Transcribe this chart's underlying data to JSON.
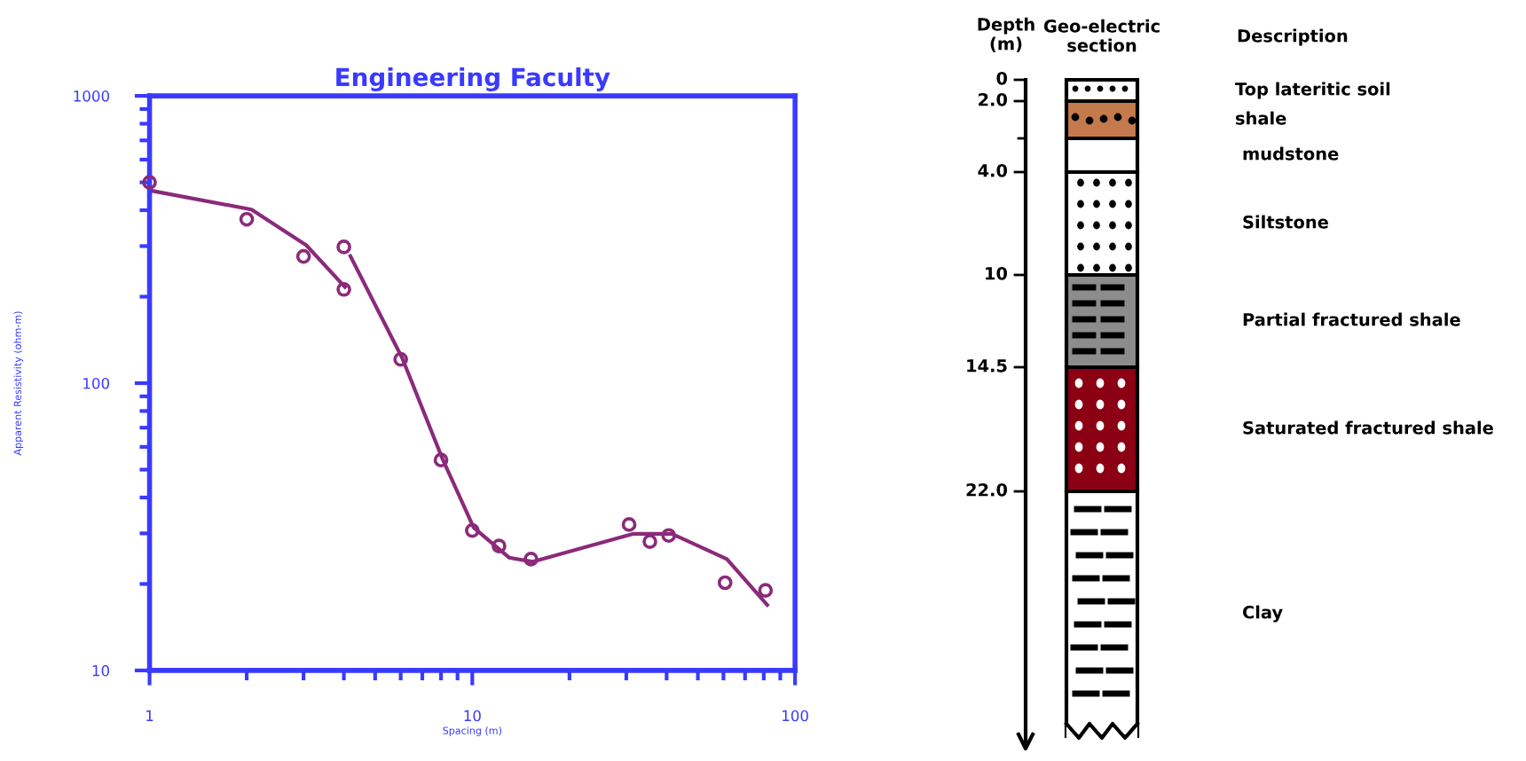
{
  "chart_data": [
    {
      "type": "scatter",
      "title": "Engineering Faculty",
      "xlabel": "Spacing (m)",
      "ylabel": "Apparent Resistivity (ohm-m)",
      "log": "xy",
      "xlim": [
        1,
        100
      ],
      "ylim": [
        10,
        1000
      ],
      "xticks": [
        1,
        10,
        100
      ],
      "yticks": [
        10,
        100,
        1000
      ],
      "grid": false,
      "series": [
        {
          "type": "scatter",
          "marker": "circle",
          "color": "#8b2a7a",
          "x": [
            1.0,
            2.0,
            3.0,
            4.0,
            4.0,
            6.0,
            8.0,
            10.0,
            12.1,
            15.2,
            30.6,
            35.5,
            40.6,
            60.7,
            81
          ],
          "values": [
            500,
            372,
            276,
            212,
            298,
            121,
            54,
            30.7,
            27.1,
            24.4,
            32.2,
            28.1,
            29.5,
            20.2,
            19.0
          ]
        },
        {
          "type": "line",
          "color": "#8b2a7a",
          "x": [
            1.0,
            2.07,
            3.06,
            4.03
          ],
          "values": [
            469,
            402,
            302,
            216
          ]
        },
        {
          "type": "line",
          "color": "#8b2a7a",
          "x": [
            4.19,
            6.07,
            8.09,
            10.1,
            13.0,
            15.4,
            31.6,
            41.5,
            61.5,
            82
          ],
          "values": [
            277,
            122,
            54.4,
            31.4,
            24.7,
            23.9,
            29.9,
            29.9,
            24.4,
            16.9
          ]
        }
      ]
    },
    {
      "type": "other",
      "ylabel": "Depth (m)",
      "annotations": [
        "Geo-electric section",
        "Description",
        "0",
        "2.0",
        "4.0",
        "10",
        "14.5",
        "22.0"
      ],
      "categories": [
        "Top lateritic soil",
        "shale",
        "mudstone",
        "Siltstone",
        "Partial fractured shale",
        "Saturated fractured shale",
        "Clay"
      ],
      "colors": [
        "#ffffff",
        "#c47a4c",
        "#ffffff",
        "#ffffff",
        "#8c8c8c",
        "#8b0012",
        "#ffffff"
      ]
    }
  ]
}
